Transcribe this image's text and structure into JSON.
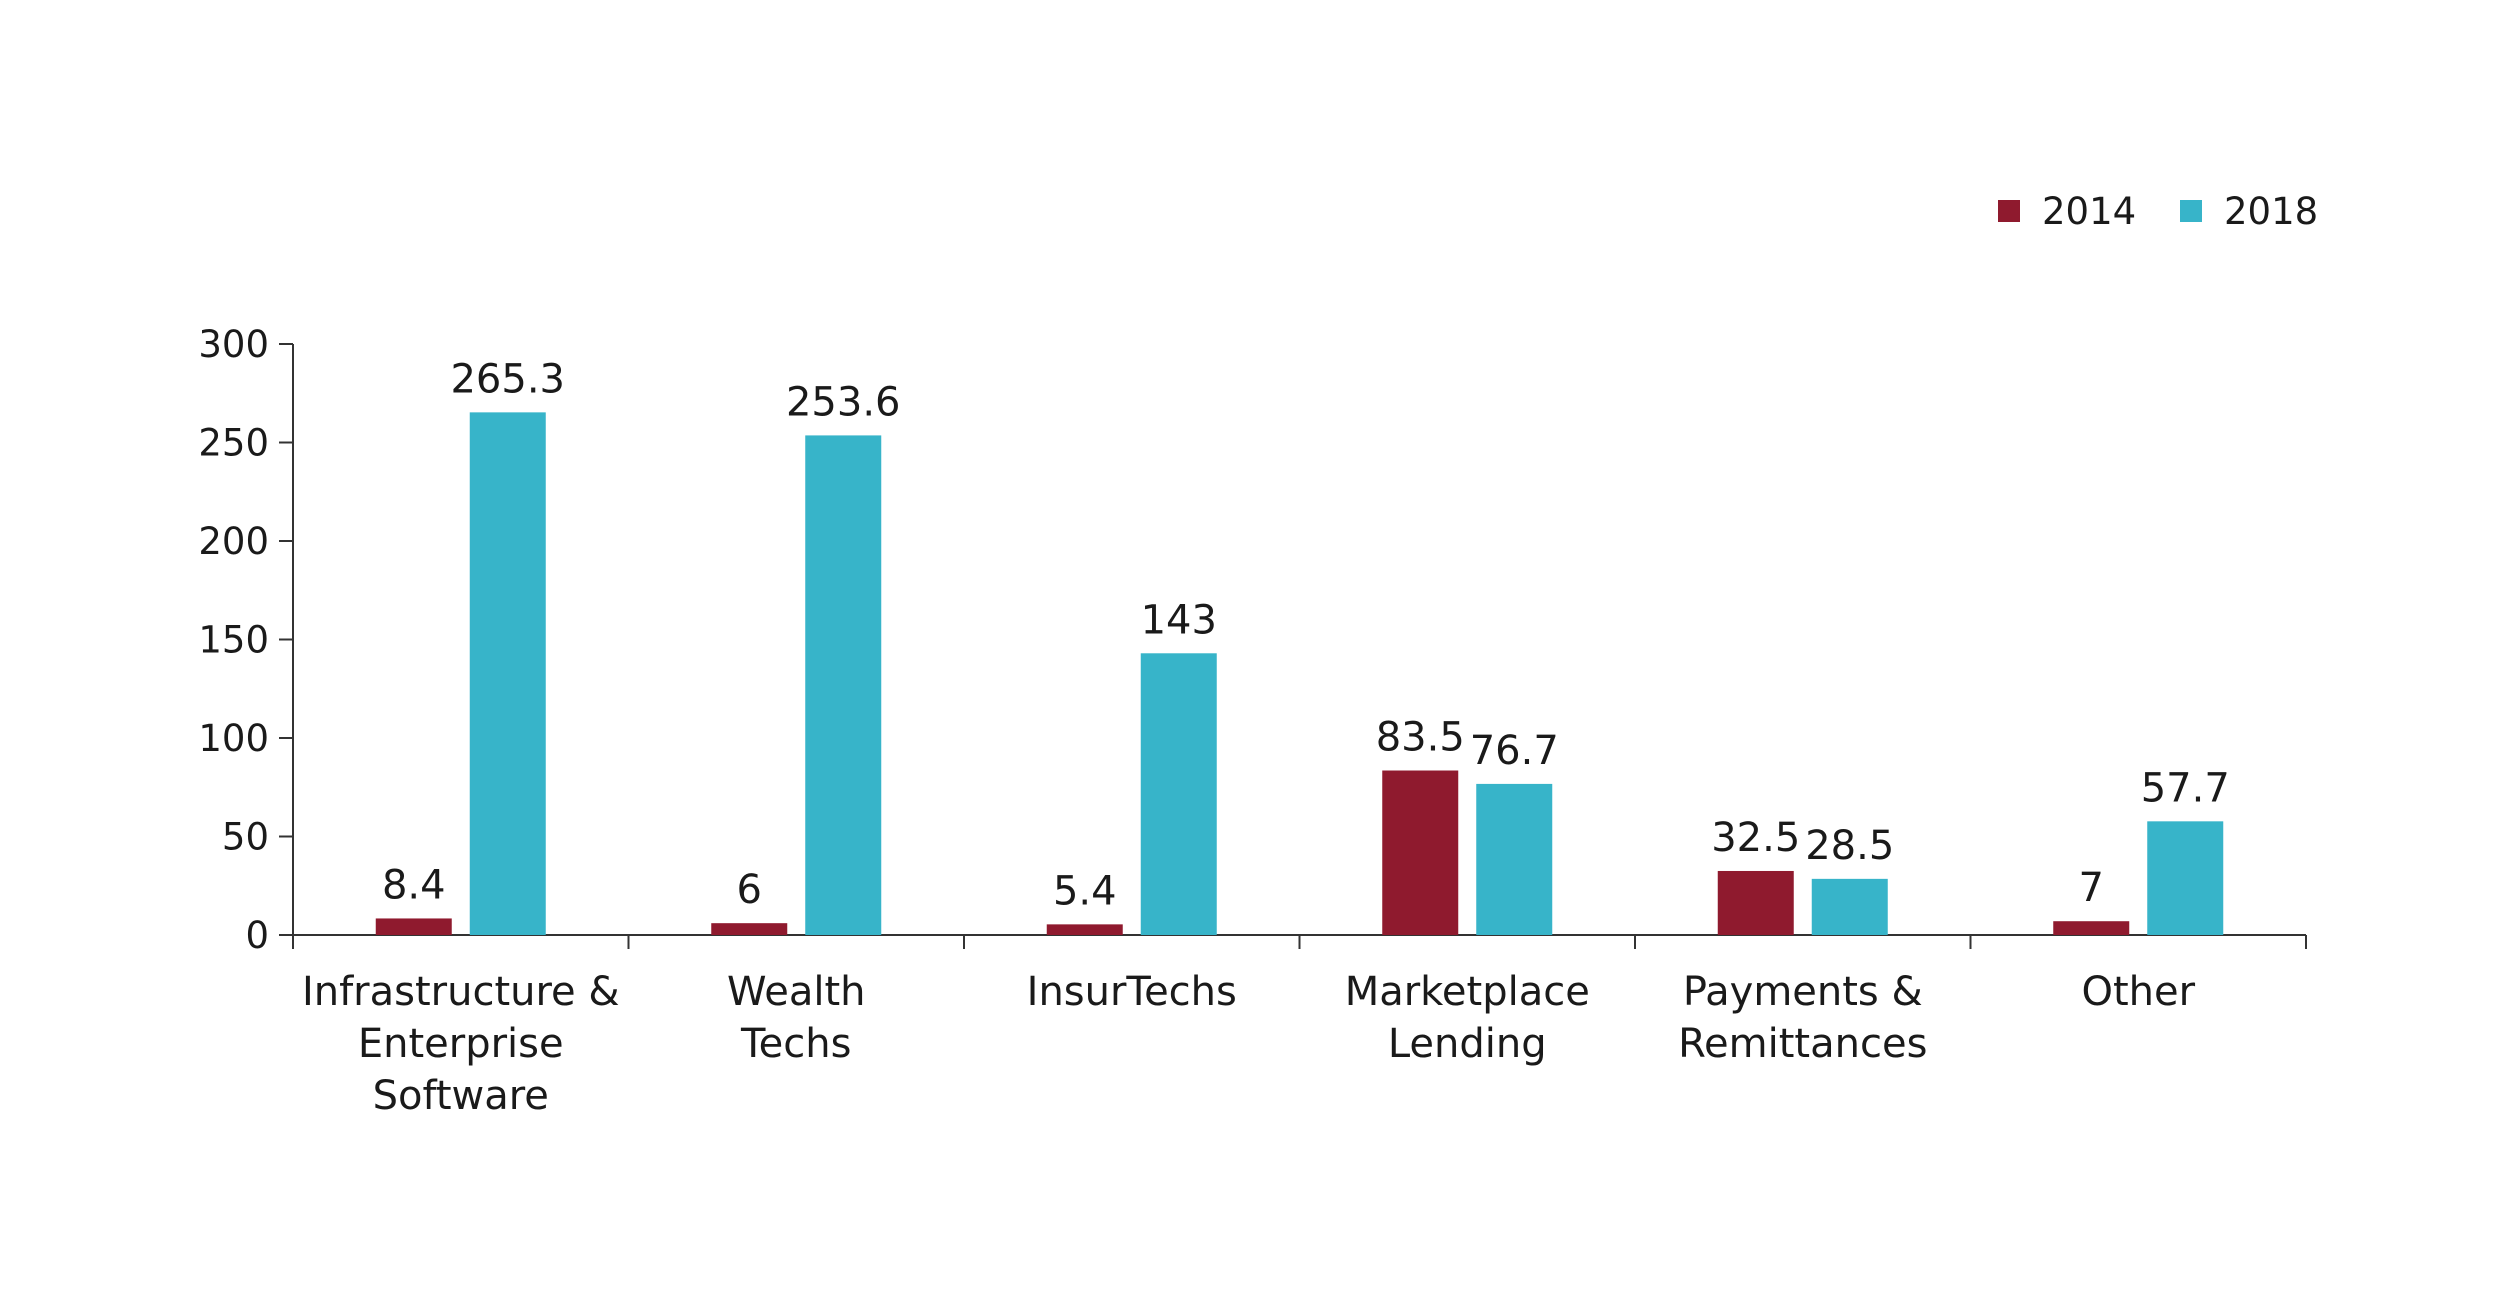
{
  "chart_data": {
    "type": "bar",
    "categories": [
      [
        "Infrastructure &",
        "Enterprise",
        "Software"
      ],
      [
        "Wealth",
        "Techs"
      ],
      [
        "InsurTechs"
      ],
      [
        "Marketplace",
        "Lending"
      ],
      [
        "Payments &",
        "Remittances"
      ],
      [
        "Other"
      ]
    ],
    "series": [
      {
        "name": "2014",
        "color": "#8f1a2e",
        "values": [
          8.4,
          6,
          5.4,
          83.5,
          32.5,
          7
        ],
        "labels": [
          "8.4",
          "6",
          "5.4",
          "83.5",
          "32.5",
          "7"
        ]
      },
      {
        "name": "2018",
        "color": "#37b4c9",
        "values": [
          265.3,
          253.6,
          143,
          76.7,
          28.5,
          57.7
        ],
        "labels": [
          "265.3",
          "253.6",
          "143",
          "76.7",
          "28.5",
          "57.7"
        ]
      }
    ],
    "y_ticks": [
      "0",
      "50",
      "100",
      "150",
      "200",
      "250",
      "300"
    ],
    "ylim": [
      0,
      300
    ],
    "legend_position": "top-right",
    "grid": false
  }
}
